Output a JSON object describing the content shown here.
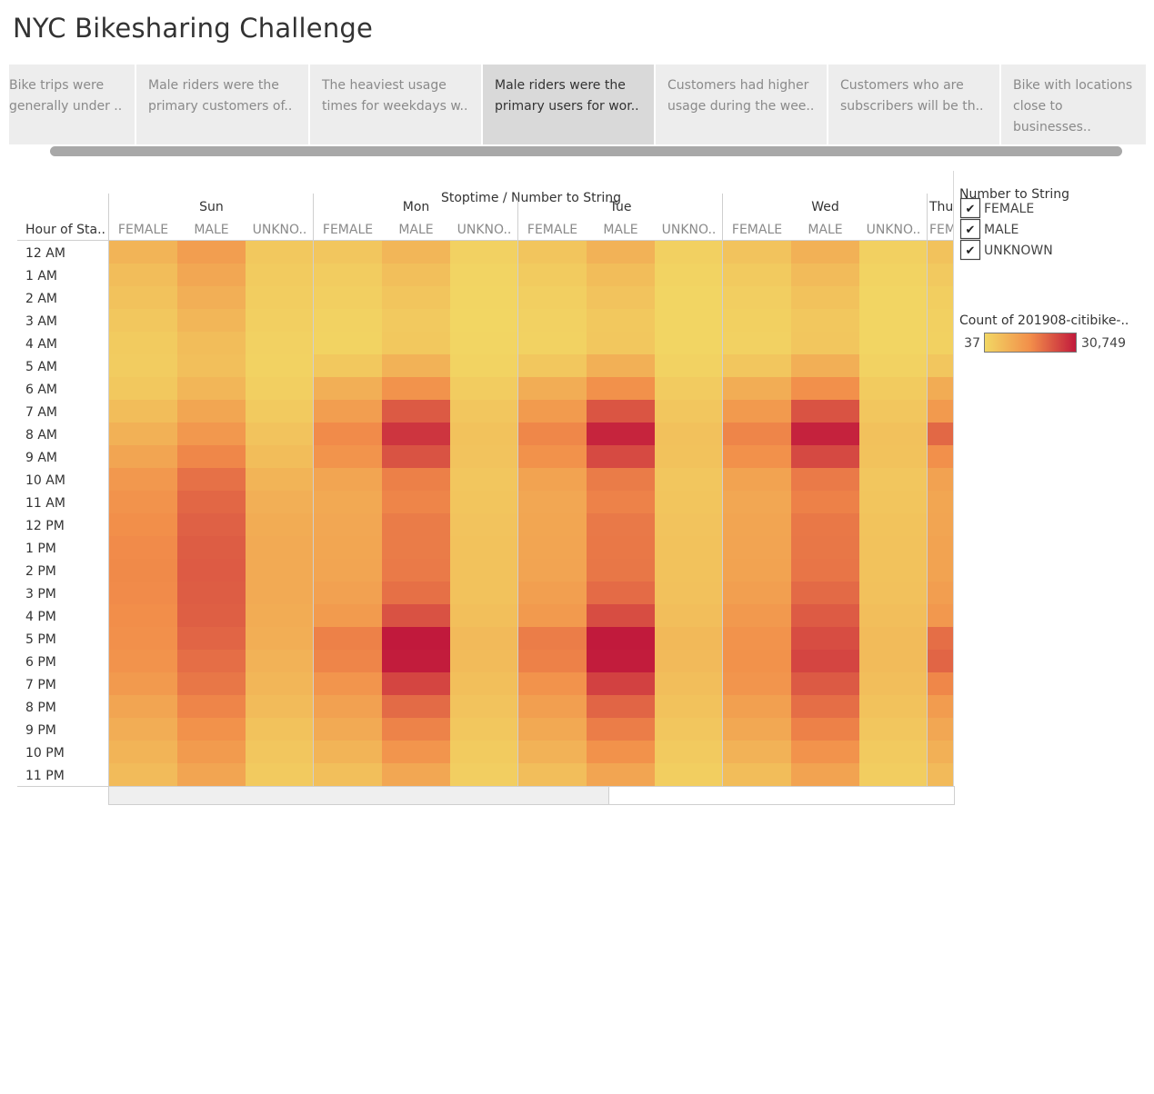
{
  "page": {
    "title": "NYC Bikesharing Challenge"
  },
  "story_points": [
    {
      "text": "Bike trips were generally under ..",
      "active": false
    },
    {
      "text": "Male riders were the primary customers of..",
      "active": false
    },
    {
      "text": "The heaviest usage times for weekdays w..",
      "active": false
    },
    {
      "text": "Male riders were the primary users for wor..",
      "active": true
    },
    {
      "text": "Customers had  higher usage during the wee..",
      "active": false
    },
    {
      "text": "Customers who are subscribers will be th..",
      "active": false
    },
    {
      "text": "Bike with locations close to businesses..",
      "active": false
    }
  ],
  "chart_data": {
    "type": "heatmap",
    "column_header_title": "Stoptime  /  Number to String",
    "row_header_title": "Hour of Sta..",
    "days": [
      "Sun",
      "Mon",
      "Tue",
      "Wed",
      "Thu"
    ],
    "genders": [
      "FEMALE",
      "MALE",
      "UNKNOWN"
    ],
    "gender_labels": [
      "FEMALE",
      "MALE",
      "UNKNO.."
    ],
    "partial_column_labels": {
      "day": "Thu",
      "gender": "FEM"
    },
    "hours": [
      "12 AM",
      "1 AM",
      "2 AM",
      "3 AM",
      "4 AM",
      "5 AM",
      "6 AM",
      "7 AM",
      "8 AM",
      "9 AM",
      "10 AM",
      "11 AM",
      "12 PM",
      "1 PM",
      "2 PM",
      "3 PM",
      "4 PM",
      "5 PM",
      "6 PM",
      "7 PM",
      "8 PM",
      "9 PM",
      "10 PM",
      "11 PM"
    ],
    "series": [
      {
        "day": "Sun",
        "gender": "FEMALE",
        "values": [
          2200,
          1400,
          1000,
          650,
          450,
          400,
          600,
          1400,
          2600,
          4200,
          6200,
          7200,
          8000,
          8600,
          8800,
          8600,
          8200,
          7800,
          7200,
          6000,
          4200,
          3000,
          2200,
          1500
        ]
      },
      {
        "day": "Sun",
        "gender": "MALE",
        "values": [
          5200,
          3800,
          2800,
          2000,
          1400,
          1200,
          2000,
          4000,
          6200,
          9200,
          12500,
          14200,
          15200,
          16000,
          16200,
          16000,
          15500,
          14500,
          13000,
          11500,
          9500,
          7500,
          5800,
          4200
        ]
      },
      {
        "day": "Sun",
        "gender": "UNKNOWN",
        "values": [
          600,
          450,
          350,
          250,
          200,
          180,
          250,
          500,
          900,
          1400,
          2200,
          2800,
          3200,
          3500,
          3500,
          3400,
          3200,
          2900,
          2500,
          2000,
          1500,
          1000,
          700,
          500
        ]
      },
      {
        "day": "Mon",
        "gender": "FEMALE",
        "values": [
          700,
          400,
          250,
          180,
          150,
          600,
          2800,
          5200,
          8600,
          7000,
          4200,
          3600,
          3800,
          4000,
          4200,
          4800,
          5800,
          10000,
          9500,
          6800,
          4800,
          3400,
          2200,
          1200
        ]
      },
      {
        "day": "Mon",
        "gender": "MALE",
        "values": [
          2000,
          1200,
          800,
          550,
          600,
          2500,
          7200,
          16500,
          24000,
          17800,
          10200,
          9400,
          10800,
          10800,
          11000,
          12600,
          18000,
          30749,
          30000,
          20500,
          13500,
          9800,
          6800,
          3800
        ]
      },
      {
        "day": "Mon",
        "gender": "UNKNOWN",
        "values": [
          200,
          120,
          90,
          70,
          80,
          150,
          400,
          700,
          1000,
          900,
          700,
          750,
          900,
          950,
          950,
          1000,
          1200,
          1600,
          1500,
          1200,
          900,
          650,
          450,
          300
        ]
      },
      {
        "day": "Tue",
        "gender": "FEMALE",
        "values": [
          800,
          450,
          280,
          200,
          180,
          650,
          3000,
          5800,
          9200,
          7400,
          4400,
          3800,
          4000,
          4200,
          4300,
          5000,
          6000,
          10600,
          10000,
          7200,
          5000,
          3600,
          2400,
          1300
        ]
      },
      {
        "day": "Tue",
        "gender": "MALE",
        "values": [
          2400,
          1400,
          900,
          600,
          650,
          2700,
          7600,
          17500,
          28000,
          19500,
          10800,
          9900,
          11200,
          11400,
          11600,
          13400,
          19000,
          30500,
          30000,
          21500,
          14500,
          10600,
          7400,
          4200
        ]
      },
      {
        "day": "Tue",
        "gender": "UNKNOWN",
        "values": [
          220,
          130,
          100,
          80,
          90,
          160,
          420,
          720,
          1050,
          950,
          730,
          780,
          930,
          980,
          990,
          1050,
          1250,
          1700,
          1600,
          1250,
          950,
          700,
          480,
          320
        ]
      },
      {
        "day": "Wed",
        "gender": "FEMALE",
        "values": [
          900,
          500,
          300,
          220,
          200,
          700,
          3100,
          5900,
          9400,
          7600,
          4500,
          3900,
          4100,
          4300,
          4400,
          5100,
          6100,
          7200,
          7400,
          6800,
          4900,
          3700,
          2500,
          1400
        ]
      },
      {
        "day": "Wed",
        "gender": "MALE",
        "values": [
          2600,
          1500,
          950,
          650,
          700,
          2800,
          7900,
          17800,
          28500,
          19800,
          11000,
          10000,
          11400,
          11600,
          11800,
          13600,
          16200,
          19000,
          20500,
          16500,
          13000,
          10000,
          7200,
          4400
        ]
      },
      {
        "day": "Wed",
        "gender": "UNKNOWN",
        "values": [
          230,
          140,
          100,
          80,
          90,
          160,
          430,
          740,
          1080,
          960,
          740,
          790,
          940,
          990,
          1000,
          1060,
          1260,
          1500,
          1500,
          1250,
          950,
          720,
          500,
          330
        ]
      },
      {
        "day": "Thu",
        "gender": "FEMALE",
        "values": [
          1000,
          550,
          320,
          230,
          210,
          720,
          3200,
          6000,
          14000,
          7800,
          4600,
          4000,
          4200,
          4400,
          4500,
          5200,
          6200,
          13000,
          14500,
          9200,
          5600,
          3900,
          2700,
          1600
        ]
      }
    ],
    "color_scale": {
      "min": 37,
      "max": 30749,
      "min_label": "37",
      "max_label": "30,749",
      "colors": [
        "#f2d864",
        "#f28e4a",
        "#c1193c"
      ]
    }
  },
  "legend": {
    "filter_title": "Number to String",
    "filter_items": [
      {
        "label": "FEMALE",
        "checked": true
      },
      {
        "label": "MALE",
        "checked": true
      },
      {
        "label": "UNKNOWN",
        "checked": true
      }
    ],
    "check_glyph": "✔",
    "color_title": "Count of 201908-citibike-..",
    "color_min_label": "37",
    "color_max_label": "30,749"
  }
}
